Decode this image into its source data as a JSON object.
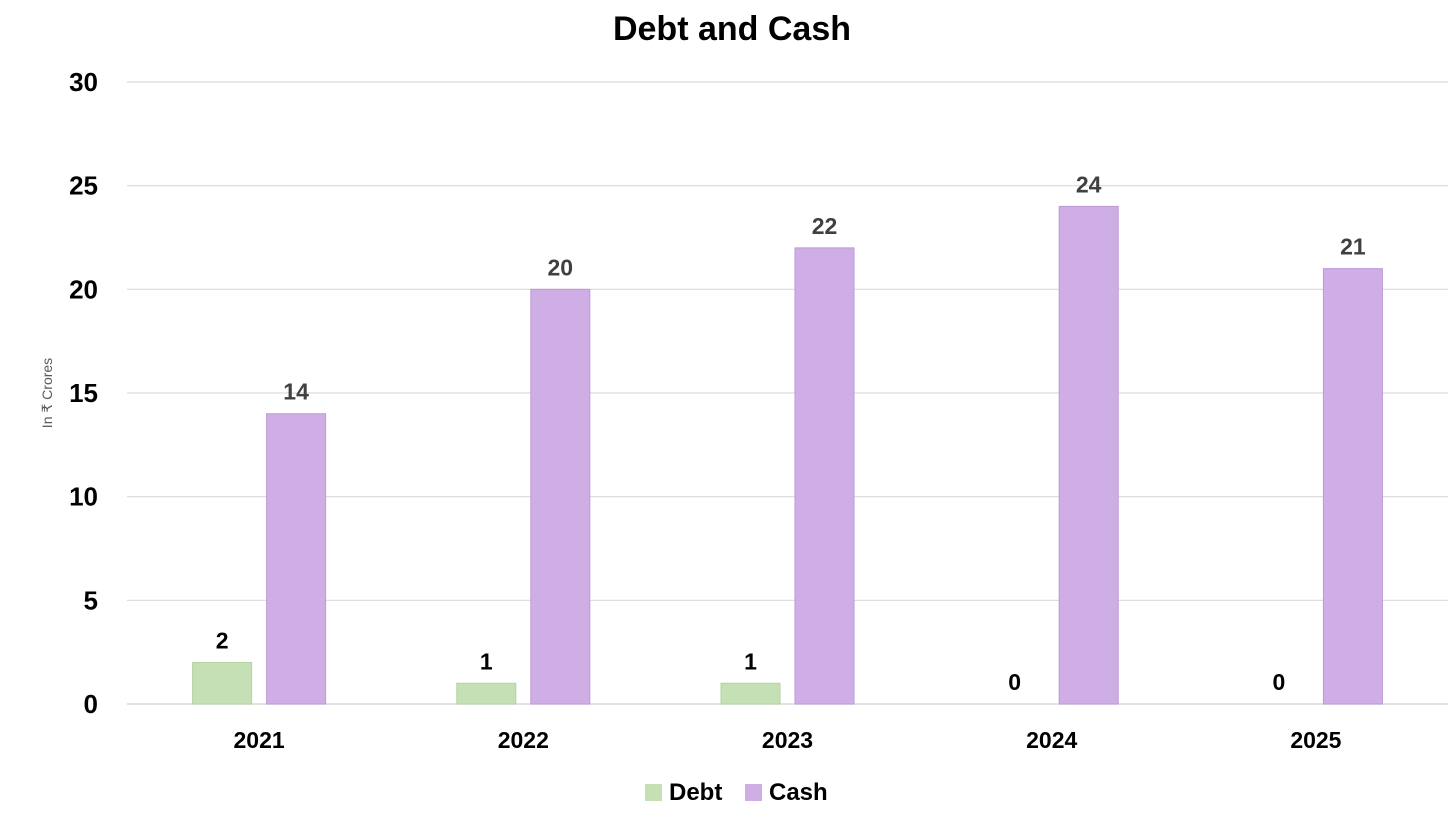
{
  "chart_data": {
    "type": "bar",
    "title": "Debt and Cash",
    "xlabel": "",
    "ylabel": "In ₹ Crores",
    "categories": [
      "2021",
      "2022",
      "2023",
      "2024",
      "2025"
    ],
    "series": [
      {
        "name": "Debt",
        "values": [
          2,
          1,
          1,
          0,
          0
        ],
        "color": "#c5e0b4"
      },
      {
        "name": "Cash",
        "values": [
          14,
          20,
          22,
          24,
          21
        ],
        "color": "#cfaee6"
      }
    ],
    "ylim": [
      0,
      30
    ],
    "yticks": [
      0,
      5,
      10,
      15,
      20,
      25,
      30
    ],
    "grid": true,
    "legend": "bottom",
    "data_labels": true
  }
}
